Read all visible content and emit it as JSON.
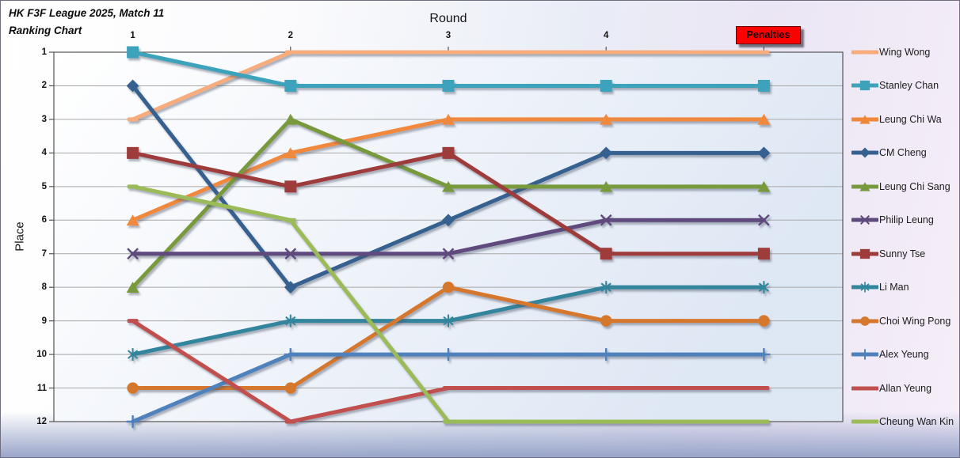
{
  "title": {
    "line1": "HK F3F League 2025, Match 11",
    "line2": "Ranking Chart"
  },
  "chart_data": {
    "type": "line",
    "xlabel": "Round",
    "ylabel": "Place",
    "categories": [
      "1",
      "2",
      "3",
      "4",
      "Penalties"
    ],
    "y_tick_labels": [
      "1",
      "2",
      "3",
      "4",
      "5",
      "6",
      "7",
      "8",
      "9",
      "10",
      "11",
      "12"
    ],
    "ylim": [
      1,
      12
    ],
    "y_axis_reversed": true,
    "grid": "horizontal",
    "legend_position": "right",
    "penalties_style": {
      "background": "#FF0000",
      "text_color": "#1A0000"
    },
    "series": [
      {
        "name": "Wing Wong",
        "color": "#F8AC7C",
        "marker": "dash",
        "values": [
          3,
          1,
          1,
          1,
          1
        ]
      },
      {
        "name": "Stanley Chan",
        "color": "#3EA2BB",
        "marker": "square",
        "values": [
          1,
          2,
          2,
          2,
          2
        ]
      },
      {
        "name": "Leung Chi Wa",
        "color": "#F0883C",
        "marker": "triangle",
        "values": [
          6,
          4,
          3,
          3,
          3
        ]
      },
      {
        "name": "CM Cheng",
        "color": "#35608F",
        "marker": "diamond",
        "values": [
          2,
          8,
          6,
          4,
          4
        ]
      },
      {
        "name": "Leung Chi Sang",
        "color": "#789A3E",
        "marker": "triangle",
        "values": [
          8,
          3,
          5,
          5,
          5
        ]
      },
      {
        "name": "Philip Leung",
        "color": "#5E4A7D",
        "marker": "x",
        "values": [
          7,
          7,
          7,
          6,
          6
        ]
      },
      {
        "name": "Sunny Tse",
        "color": "#9E3B3B",
        "marker": "square",
        "values": [
          4,
          5,
          4,
          7,
          7
        ]
      },
      {
        "name": "Li Man",
        "color": "#31859C",
        "marker": "asterisk",
        "values": [
          10,
          9,
          9,
          8,
          8
        ]
      },
      {
        "name": "Choi Wing Pong",
        "color": "#D5782D",
        "marker": "circle",
        "values": [
          11,
          11,
          8,
          9,
          9
        ]
      },
      {
        "name": "Alex Yeung",
        "color": "#4F81BD",
        "marker": "plus",
        "values": [
          12,
          10,
          10,
          10,
          10
        ]
      },
      {
        "name": "Allan Yeung",
        "color": "#C0504D",
        "marker": "dash",
        "values": [
          9,
          12,
          11,
          11,
          11
        ]
      },
      {
        "name": "Cheung Wan Kin",
        "color": "#9BBB59",
        "marker": "dash",
        "values": [
          5,
          6,
          12,
          12,
          12
        ]
      }
    ]
  }
}
